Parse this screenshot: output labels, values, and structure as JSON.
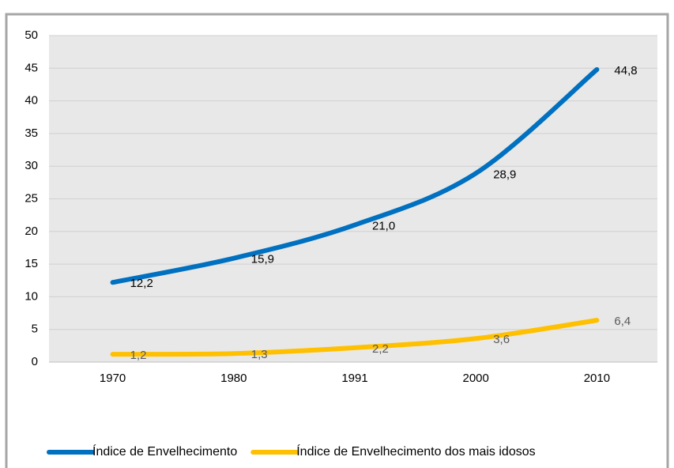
{
  "chart_data": {
    "type": "line",
    "categories": [
      "1970",
      "1980",
      "1991",
      "2000",
      "2010"
    ],
    "series": [
      {
        "name": "Índice de Envelhecimento",
        "color": "#0070c0",
        "values": [
          12.2,
          15.9,
          21.0,
          28.9,
          44.8
        ],
        "value_labels": [
          "12,2",
          "15,9",
          "21,0",
          "28,9",
          "44,8"
        ],
        "label_color": "#000000"
      },
      {
        "name": "Índice de Envelhecimento dos mais idosos",
        "color": "#ffc000",
        "values": [
          1.2,
          1.3,
          2.2,
          3.6,
          6.4
        ],
        "value_labels": [
          "1,2",
          "1,3",
          "2,2",
          "3,6",
          "6,4"
        ],
        "label_color": "#595959"
      }
    ],
    "ylim": [
      0,
      50
    ],
    "yticks": [
      0,
      5,
      10,
      15,
      20,
      25,
      30,
      35,
      40,
      45,
      50
    ],
    "grid": true,
    "smooth": true,
    "legend": "bottom"
  }
}
